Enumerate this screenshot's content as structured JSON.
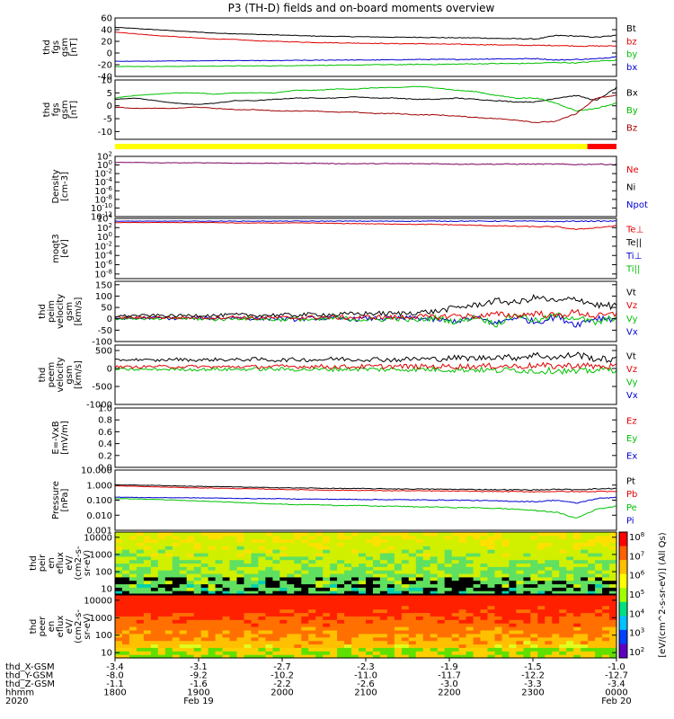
{
  "chart_data": {
    "type": "line",
    "title": "P3 (TH-D) fields and on-board moments overview",
    "panels": [
      {
        "ylabel": [
          "thd",
          "fgs",
          "gsm",
          "[nT]"
        ],
        "yticks": [
          "60",
          "40",
          "20",
          "0",
          "-20",
          "-40"
        ],
        "ylim": [
          -40,
          60
        ],
        "legend": [
          {
            "label": "Bt",
            "color": "#000000"
          },
          {
            "label": "bz",
            "color": "#e00000"
          },
          {
            "label": "by",
            "color": "#00c000"
          },
          {
            "label": "bx",
            "color": "#0000d0"
          }
        ],
        "series": [
          {
            "color": "#000000",
            "values": [
              44,
              42,
              40,
              38,
              36,
              34,
              33,
              32,
              31,
              30,
              29,
              28.5,
              28,
              27.5,
              27,
              27,
              26.5,
              26,
              26,
              25,
              24.5,
              24,
              30,
              29,
              27,
              30
            ]
          },
          {
            "color": "#e00000",
            "values": [
              36,
              33,
              30,
              28,
              26,
              24,
              23,
              21,
              20,
              19,
              18,
              17.5,
              17,
              16.5,
              16,
              16,
              15.5,
              15,
              14.5,
              14,
              13.5,
              13,
              13,
              12,
              12,
              12
            ]
          },
          {
            "color": "#0000d0",
            "values": [
              -14,
              -14,
              -14,
              -13.5,
              -13.5,
              -13,
              -13,
              -13,
              -13,
              -12.5,
              -12.5,
              -12,
              -12,
              -12,
              -11.5,
              -11,
              -11,
              -11,
              -10.5,
              -10,
              -10,
              -9.5,
              -12,
              -11,
              -10,
              -6
            ]
          },
          {
            "color": "#00c000",
            "values": [
              -23,
              -23,
              -23,
              -23,
              -22.5,
              -22.5,
              -22,
              -22,
              -22,
              -21.5,
              -21,
              -21,
              -20.5,
              -20,
              -20,
              -19.5,
              -19.5,
              -19,
              -18.5,
              -18,
              -18,
              -17.5,
              -16,
              -17,
              -14,
              -12
            ]
          }
        ]
      },
      {
        "ylabel": [
          "thd",
          "fgs",
          "gsm",
          "[nT]"
        ],
        "yticks": [
          "10",
          "5",
          "0",
          "-5",
          "-10"
        ],
        "ylim": [
          -13,
          10
        ],
        "legend": [
          {
            "label": "Bx",
            "color": "#000000"
          },
          {
            "label": "By",
            "color": "#00c000"
          },
          {
            "label": "Bz",
            "color": "#a00000"
          }
        ],
        "series": [
          {
            "color": "#000000",
            "values": [
              2.5,
              3,
              2,
              1,
              0.5,
              1,
              2,
              2,
              2.5,
              3,
              3,
              3,
              3.5,
              3,
              3,
              2.5,
              2.5,
              3,
              2.5,
              2,
              1.5,
              1.5,
              3,
              4,
              2,
              7
            ]
          },
          {
            "color": "#00c000",
            "values": [
              3,
              4,
              4.5,
              5,
              5,
              4.5,
              5,
              5,
              5,
              6,
              6,
              6.5,
              6.5,
              7,
              7,
              7.5,
              7,
              6,
              5.5,
              4,
              3,
              3,
              1,
              -2,
              -1,
              1
            ]
          },
          {
            "color": "#a00000",
            "values": [
              -0.5,
              -1,
              -1,
              -1,
              -0.5,
              -1,
              -1.5,
              -1.5,
              -2,
              -2,
              -2,
              -2.5,
              -2.5,
              -3,
              -3,
              -3.5,
              -3.5,
              -4,
              -4.5,
              -5,
              -5.5,
              -6.5,
              -6,
              -3,
              3,
              4
            ]
          }
        ]
      },
      {
        "ylabel": [
          "Density",
          "[cm-3]"
        ],
        "yticks": [
          "10^2",
          "10^0",
          "10^-2",
          "10^-4",
          "10^-6",
          "10^-8",
          "10^-10",
          "10^-12"
        ],
        "ylim": [
          -12,
          2
        ],
        "log": true,
        "legend": [
          {
            "label": "Ne",
            "color": "#e00000"
          },
          {
            "label": "Ni",
            "color": "#000000"
          },
          {
            "label": "Npot",
            "color": "#0000d0"
          }
        ],
        "series": [
          {
            "color": "#7a0060",
            "values": [
              0.6,
              0.6,
              0.5,
              0.5,
              0.5,
              0.5,
              0.4,
              0.4,
              0.4,
              0.4,
              0.4,
              0.3,
              0.3,
              0.3,
              0.3,
              0.3,
              0.3,
              0.2,
              0.2,
              0.2,
              0.2,
              0.2,
              0.2,
              0.1,
              0.2,
              0.1
            ]
          }
        ]
      },
      {
        "ylabel": [
          "moqt3",
          "[eV]"
        ],
        "yticks": [
          "10^4",
          "10^2",
          "10^0",
          "10^-2",
          "10^-4",
          "10^-6",
          "10^-8"
        ],
        "ylim": [
          -9,
          4
        ],
        "log": true,
        "legend": [
          {
            "label": "Te⊥",
            "color": "#e00000"
          },
          {
            "label": "Te||",
            "color": "#000000"
          },
          {
            "label": "Ti⊥",
            "color": "#0000d0"
          },
          {
            "label": "Ti||",
            "color": "#00c000"
          }
        ],
        "series": [
          {
            "color": "#0000d0",
            "values": [
              3.4,
              3.4,
              3.4,
              3.4,
              3.4,
              3.4,
              3.4,
              3.4,
              3.4,
              3.4,
              3.4,
              3.4,
              3.4,
              3.4,
              3.4,
              3.4,
              3.4,
              3.4,
              3.4,
              3.4,
              3.4,
              3.4,
              3.3,
              3.4,
              3.4,
              3.4
            ]
          },
          {
            "color": "#e00000",
            "values": [
              3.1,
              3.1,
              3.1,
              3.1,
              3.1,
              3.1,
              3.0,
              3.0,
              3.0,
              3.0,
              3.0,
              2.9,
              2.9,
              2.8,
              2.8,
              2.7,
              2.7,
              2.6,
              2.5,
              2.4,
              2.3,
              2.2,
              2.2,
              1.6,
              2.0,
              2.4
            ]
          }
        ]
      },
      {
        "ylabel": [
          "thd",
          "peim",
          "velocity",
          "gsm",
          "[km/s]"
        ],
        "yticks": [
          "150",
          "100",
          "50",
          "0",
          "-50",
          "-100"
        ],
        "ylim": [
          -100,
          165
        ],
        "legend": [
          {
            "label": "Vt",
            "color": "#000000"
          },
          {
            "label": "Vz",
            "color": "#e00000"
          },
          {
            "label": "Vy",
            "color": "#00c000"
          },
          {
            "label": "Vx",
            "color": "#0000d0"
          }
        ],
        "series": [
          {
            "color": "#0000d0",
            "values": [
              3,
              2,
              4,
              1,
              3,
              2,
              5,
              0,
              2,
              -3,
              3,
              1,
              -2,
              2,
              0,
              4,
              -5,
              -10,
              5,
              -20,
              8,
              -15,
              10,
              -25,
              5,
              0
            ]
          },
          {
            "color": "#00c000",
            "values": [
              0,
              2,
              -2,
              3,
              0,
              -3,
              2,
              1,
              -4,
              0,
              -6,
              3,
              -2,
              -5,
              2,
              -8,
              5,
              -15,
              10,
              -25,
              20,
              -10,
              15,
              5,
              -20,
              10
            ]
          },
          {
            "color": "#e00000",
            "values": [
              6,
              5,
              7,
              4,
              6,
              5,
              8,
              3,
              5,
              4,
              7,
              6,
              5,
              8,
              6,
              10,
              7,
              15,
              10,
              20,
              14,
              25,
              12,
              30,
              10,
              20
            ]
          },
          {
            "color": "#000000",
            "values": [
              12,
              14,
              15,
              13,
              16,
              14,
              18,
              15,
              17,
              16,
              20,
              18,
              22,
              24,
              22,
              28,
              32,
              50,
              60,
              80,
              70,
              95,
              75,
              90,
              60,
              55
            ]
          }
        ]
      },
      {
        "ylabel": [
          "thd",
          "peem",
          "velocity",
          "gsm",
          "[km/s]"
        ],
        "yticks": [
          "500",
          "0",
          "-500",
          "-1000"
        ],
        "ylim": [
          -1000,
          650
        ],
        "legend": [
          {
            "label": "Vt",
            "color": "#000000"
          },
          {
            "label": "Vz",
            "color": "#e00000"
          },
          {
            "label": "Vy",
            "color": "#00c000"
          },
          {
            "label": "Vx",
            "color": "#0000d0"
          }
        ],
        "series": [
          {
            "color": "#00c000",
            "values": [
              -20,
              -30,
              -25,
              -20,
              -30,
              -20,
              -25,
              -15,
              -20,
              -25,
              -30,
              -20,
              -15,
              -25,
              -30,
              -20,
              -25,
              -40,
              -30,
              -60,
              -40,
              -80,
              -50,
              -100,
              -40,
              -30
            ]
          },
          {
            "color": "#e00000",
            "values": [
              50,
              40,
              60,
              45,
              55,
              40,
              50,
              45,
              55,
              50,
              60,
              45,
              50,
              55,
              60,
              50,
              55,
              60,
              55,
              70,
              60,
              80,
              60,
              90,
              55,
              60
            ]
          },
          {
            "color": "#000000",
            "values": [
              230,
              250,
              220,
              260,
              230,
              250,
              240,
              260,
              230,
              250,
              240,
              270,
              250,
              260,
              240,
              270,
              260,
              300,
              280,
              330,
              300,
              380,
              290,
              400,
              260,
              250
            ]
          }
        ]
      },
      {
        "ylabel": [
          "E=-VxB",
          "[mV/m]"
        ],
        "yticks": [
          "1.0",
          "0.8",
          "0.6",
          "0.4",
          "0.2",
          "0.0"
        ],
        "ylim": [
          0,
          1
        ],
        "legend": [
          {
            "label": "Ez",
            "color": "#e00000"
          },
          {
            "label": "Ey",
            "color": "#00c000"
          },
          {
            "label": "Ex",
            "color": "#0000d0"
          }
        ],
        "series": []
      },
      {
        "ylabel": [
          "Pressure",
          "[nPa]"
        ],
        "yticks": [
          "10.000",
          "1.000",
          "0.100",
          "0.010",
          "0.001"
        ],
        "ylim": [
          -3,
          1
        ],
        "log": true,
        "legend": [
          {
            "label": "Pt",
            "color": "#000000"
          },
          {
            "label": "Pb",
            "color": "#e00000"
          },
          {
            "label": "Pe",
            "color": "#00c000"
          },
          {
            "label": "Pi",
            "color": "#0000d0"
          }
        ],
        "series": [
          {
            "color": "#000000",
            "values": [
              0.02,
              0.0,
              -0.02,
              -0.05,
              -0.08,
              -0.1,
              -0.12,
              -0.15,
              -0.17,
              -0.19,
              -0.2,
              -0.22,
              -0.23,
              -0.24,
              -0.25,
              -0.26,
              -0.27,
              -0.28,
              -0.29,
              -0.3,
              -0.31,
              -0.32,
              -0.28,
              -0.3,
              -0.25,
              -0.22
            ]
          },
          {
            "color": "#e00000",
            "values": [
              -0.05,
              -0.08,
              -0.12,
              -0.15,
              -0.18,
              -0.2,
              -0.23,
              -0.25,
              -0.28,
              -0.3,
              -0.32,
              -0.34,
              -0.35,
              -0.36,
              -0.37,
              -0.38,
              -0.39,
              -0.4,
              -0.41,
              -0.42,
              -0.43,
              -0.44,
              -0.42,
              -0.44,
              -0.42,
              -0.4
            ]
          },
          {
            "color": "#0000d0",
            "values": [
              -0.8,
              -0.82,
              -0.83,
              -0.84,
              -0.85,
              -0.86,
              -0.88,
              -0.9,
              -0.9,
              -0.92,
              -0.93,
              -0.94,
              -0.95,
              -0.96,
              -0.97,
              -0.98,
              -0.99,
              -1.0,
              -1.02,
              -1.05,
              -1.08,
              -1.1,
              -1.0,
              -1.2,
              -0.9,
              -0.8
            ]
          },
          {
            "color": "#00c000",
            "values": [
              -0.9,
              -0.92,
              -0.95,
              -1.0,
              -1.05,
              -1.1,
              -1.15,
              -1.2,
              -1.25,
              -1.3,
              -1.3,
              -1.35,
              -1.35,
              -1.4,
              -1.4,
              -1.45,
              -1.45,
              -1.5,
              -1.5,
              -1.55,
              -1.6,
              -1.7,
              -1.8,
              -2.2,
              -1.6,
              -1.4
            ]
          }
        ]
      },
      {
        "ylabel": [
          "thd",
          "peir",
          "en",
          "eflux",
          "eV/",
          "(cm2-s-",
          "sr-eV)"
        ],
        "yticks": [
          "10000",
          "1000",
          "100",
          "10"
        ],
        "ylim": [
          5,
          20000
        ],
        "log": true,
        "spectrogram": true
      },
      {
        "ylabel": [
          "thd",
          "peer",
          "en",
          "eflux",
          "eV/",
          "(cm2-s-",
          "sr-eV)"
        ],
        "yticks": [
          "10000",
          "1000",
          "100",
          "10"
        ],
        "ylim": [
          5,
          20000
        ],
        "log": true,
        "spectrogram": true
      }
    ],
    "colorbar": {
      "ticks": [
        "10^8",
        "10^7",
        "10^6",
        "10^5",
        "10^4",
        "10^3",
        "10^2"
      ],
      "label": "[eV/(cm^2-s-sr-eV)] (All Qs)"
    },
    "xaxis": {
      "rows": [
        {
          "label": "thd_X-GSM",
          "values": [
            "-3.4",
            "-3.1",
            "-2.7",
            "-2.3",
            "-1.9",
            "-1.5",
            "-1.0"
          ]
        },
        {
          "label": "thd_Y-GSM",
          "values": [
            "-8.0",
            "-9.2",
            "-10.2",
            "-11.0",
            "-11.7",
            "-12.2",
            "-12.7"
          ]
        },
        {
          "label": "thd_Z-GSM",
          "values": [
            "-1.1",
            "-1.6",
            "-2.2",
            "-2.6",
            "-3.0",
            "-3.3",
            "-3.4"
          ]
        },
        {
          "label": "hhmm",
          "values": [
            "1800",
            "1900",
            "2000",
            "2100",
            "2200",
            "2300",
            "0000"
          ]
        }
      ],
      "year": "2020",
      "dates": [
        "Feb 19",
        "Feb 20"
      ]
    }
  }
}
